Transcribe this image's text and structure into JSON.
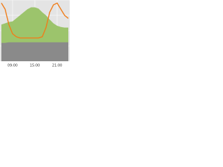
{
  "chart_data": {
    "type": "area",
    "categories": [
      null,
      null,
      null,
      "09:00",
      null,
      null,
      null,
      null,
      null,
      "15:00",
      null,
      null,
      null,
      null,
      null,
      "21:00",
      null,
      null,
      null
    ],
    "ylim": [
      0,
      100
    ],
    "yticks": [
      0,
      25,
      50,
      75,
      100
    ],
    "grid": true,
    "background": "#e4e4e4",
    "series": [
      {
        "kind": "area",
        "color": "#9cc46c",
        "values": [
          60,
          62,
          64,
          65,
          70,
          75,
          80,
          85,
          88,
          88,
          86,
          80,
          75,
          68,
          62,
          58,
          56,
          55,
          55
        ]
      },
      {
        "kind": "area",
        "color": "#8a8a8a",
        "values": [
          30,
          30,
          31,
          31,
          31,
          31,
          31,
          31,
          31,
          31,
          31,
          31,
          31,
          31,
          31,
          31,
          31,
          31,
          31
        ]
      },
      {
        "kind": "line",
        "color": "#f07d1a",
        "values": [
          95,
          85,
          60,
          45,
          40,
          38,
          38,
          38,
          38,
          38,
          38,
          40,
          55,
          80,
          92,
          95,
          85,
          75,
          70
        ]
      }
    ]
  }
}
